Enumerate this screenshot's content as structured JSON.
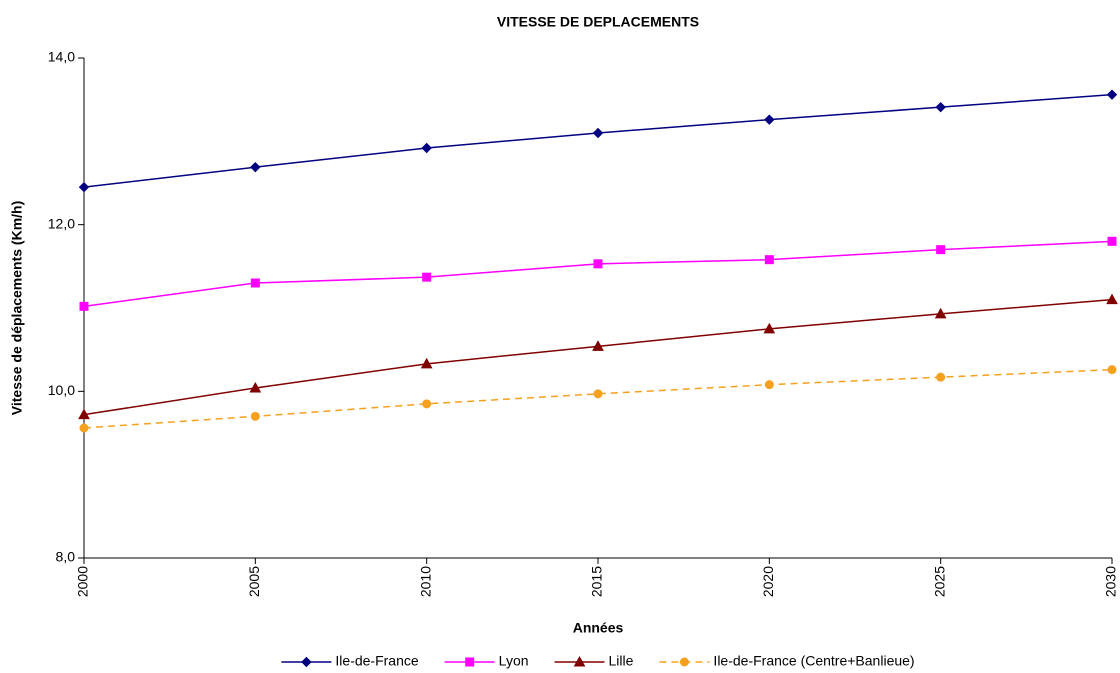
{
  "chart_data": {
    "type": "line",
    "title": "VITESSE DE DEPLACEMENTS",
    "x_label": "Années",
    "y_label": "Vitesse de déplacements (Km/h)",
    "x": [
      2000,
      2005,
      2010,
      2015,
      2020,
      2025,
      2030
    ],
    "xlim": [
      2000,
      2030
    ],
    "xticks": [
      2000,
      2005,
      2010,
      2015,
      2020,
      2025,
      2030
    ],
    "ylim": [
      8,
      14
    ],
    "yticks": [
      {
        "value": 8,
        "label": "8,0"
      },
      {
        "value": 10,
        "label": "10,0"
      },
      {
        "value": 12,
        "label": "12,0"
      },
      {
        "value": 14,
        "label": "14,0"
      }
    ],
    "grid": false,
    "legend": "bottom",
    "series": [
      {
        "name": "Ile-de-France",
        "color": "#000080",
        "marker": "diamond",
        "dashed": false,
        "values": [
          12.45,
          12.69,
          12.92,
          13.1,
          13.26,
          13.41,
          13.56
        ]
      },
      {
        "name": "Lyon",
        "color": "#ff00ff",
        "marker": "square",
        "dashed": false,
        "values": [
          11.02,
          11.3,
          11.37,
          11.53,
          11.58,
          11.7,
          11.8
        ]
      },
      {
        "name": "Lille",
        "color": "#800000",
        "marker": "triangle",
        "dashed": false,
        "values": [
          9.72,
          10.04,
          10.33,
          10.54,
          10.75,
          10.93,
          11.1
        ]
      },
      {
        "name": "Ile-de-France (Centre+Banlieue)",
        "color": "#f5a01f",
        "marker": "circle",
        "dashed": true,
        "values": [
          9.56,
          9.7,
          9.85,
          9.97,
          10.08,
          10.17,
          10.26
        ]
      }
    ]
  }
}
